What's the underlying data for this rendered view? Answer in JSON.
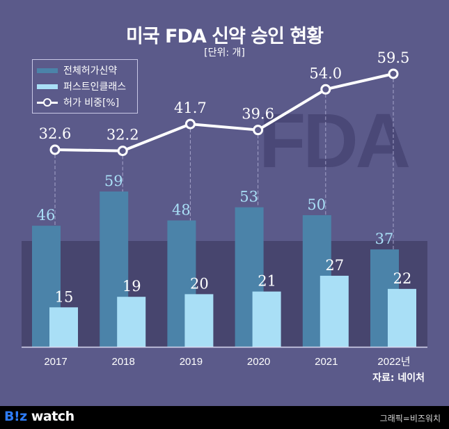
{
  "header": {
    "title": "미국 FDA 신약 승인 현황",
    "unit": "[단위: 개]"
  },
  "watermark": "FDA",
  "source": "자료: 네이처",
  "footer": {
    "logo_biz": "B!z",
    "logo_watch": "watch",
    "credit": "그래픽=비즈워치"
  },
  "colors": {
    "background": "#5b5a8a",
    "band": "#47456e",
    "total_bar": "#4b83a9",
    "first_bar": "#a9dff6",
    "line": "#ffffff",
    "watermark": "#4a4877"
  },
  "chart_data": {
    "type": "bar+line",
    "title": "미국 FDA 신약 승인 현황",
    "subtitle": "[단위: 개]",
    "categories": [
      "2017",
      "2018",
      "2019",
      "2020",
      "2021",
      "2022년"
    ],
    "series": [
      {
        "name": "전체허가신약",
        "type": "bar",
        "values": [
          46,
          59,
          48,
          53,
          50,
          37
        ]
      },
      {
        "name": "퍼스트인클래스",
        "type": "bar",
        "values": [
          15,
          19,
          20,
          21,
          27,
          22
        ]
      },
      {
        "name": "허가 비중[%]",
        "type": "line",
        "values": [
          32.6,
          32.2,
          41.7,
          39.6,
          54.0,
          59.5
        ]
      }
    ],
    "value_labels": {
      "total": [
        "46",
        "59",
        "48",
        "53",
        "50",
        "37"
      ],
      "first": [
        "15",
        "19",
        "20",
        "21",
        "27",
        "22"
      ],
      "ratio": [
        "32.6",
        "32.2",
        "41.7",
        "39.6",
        "54.0",
        "59.5"
      ]
    },
    "legend": [
      "전체허가신약",
      "퍼스트인클래스",
      "허가 비중[%]"
    ],
    "legend_position": "top-left",
    "xlabel": "",
    "ylabel": "",
    "grid": false,
    "source": "자료: 네이처"
  }
}
